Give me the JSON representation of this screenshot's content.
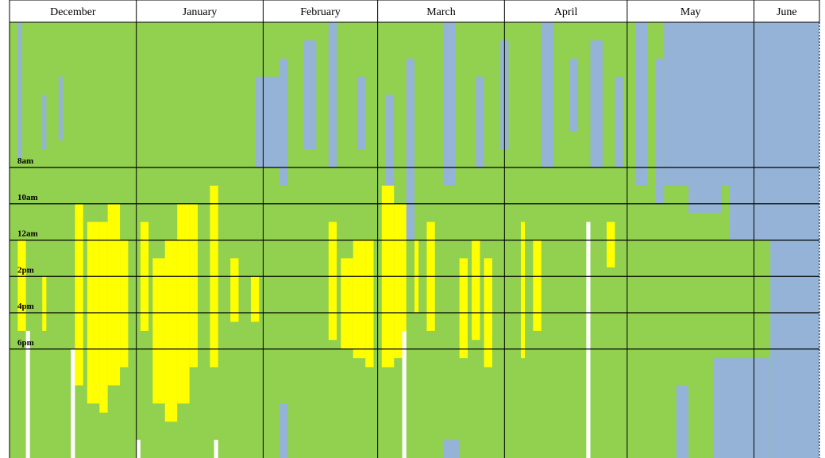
{
  "chart_data": {
    "type": "heatmap",
    "months": [
      "December",
      "January",
      "February",
      "March",
      "April",
      "May",
      "June"
    ],
    "month_starts": [
      0,
      31,
      62,
      90,
      121,
      151,
      182
    ],
    "xlim": [
      0,
      198
    ],
    "ylim": [
      0,
      24
    ],
    "yticks": [
      {
        "value": 8,
        "label": "8am"
      },
      {
        "value": 10,
        "label": "10am"
      },
      {
        "value": 12,
        "label": "12am"
      },
      {
        "value": 14,
        "label": "2pm"
      },
      {
        "value": 16,
        "label": "4pm"
      },
      {
        "value": 18,
        "label": "6pm"
      }
    ],
    "background": "#92d050",
    "palette": [
      "#95b3d7",
      "#ffff00",
      "#ffffff"
    ],
    "stripes": [
      [
        2,
        1,
        0,
        7.5,
        0
      ],
      [
        8,
        1,
        4,
        7,
        0
      ],
      [
        12,
        1,
        3,
        6.5,
        0
      ],
      [
        60,
        7,
        3,
        8,
        0
      ],
      [
        66,
        2,
        2,
        9,
        0
      ],
      [
        72,
        3,
        1,
        7,
        0
      ],
      [
        78,
        2,
        0,
        8,
        0
      ],
      [
        85,
        2,
        3,
        7,
        0
      ],
      [
        92,
        2,
        4,
        9,
        0
      ],
      [
        97,
        2,
        2,
        12,
        0
      ],
      [
        106,
        3,
        0,
        9,
        0
      ],
      [
        114,
        2,
        3,
        8,
        0
      ],
      [
        120,
        2,
        1,
        7,
        0
      ],
      [
        130,
        3,
        0,
        8,
        0
      ],
      [
        137,
        2,
        2,
        6,
        0
      ],
      [
        142,
        3,
        1,
        8,
        0
      ],
      [
        148,
        2,
        3,
        8,
        0
      ],
      [
        153,
        3,
        0,
        9,
        0
      ],
      [
        158,
        2,
        2,
        10,
        0
      ],
      [
        160,
        38,
        0,
        9,
        0
      ],
      [
        166,
        8,
        9,
        10.5,
        0
      ],
      [
        176,
        22,
        9,
        12,
        0
      ],
      [
        186,
        12,
        12,
        24,
        0
      ],
      [
        172,
        14,
        18.5,
        24,
        0
      ],
      [
        163,
        3,
        20,
        24,
        0
      ],
      [
        66,
        2,
        21,
        24,
        0
      ],
      [
        106,
        4,
        23,
        24,
        0
      ],
      [
        16,
        2,
        10,
        20,
        1
      ],
      [
        19,
        3,
        11,
        21,
        1
      ],
      [
        22,
        2,
        11,
        21.5,
        1
      ],
      [
        24,
        3,
        10,
        20,
        1
      ],
      [
        27,
        2,
        12,
        19,
        1
      ],
      [
        2,
        2,
        12,
        17,
        1
      ],
      [
        8,
        1,
        14,
        17,
        1
      ],
      [
        32,
        2,
        11,
        17,
        1
      ],
      [
        35,
        3,
        13,
        21,
        1
      ],
      [
        38,
        3,
        12,
        22,
        1
      ],
      [
        41,
        3,
        10,
        21,
        1
      ],
      [
        44,
        2,
        10,
        19,
        1
      ],
      [
        49,
        2,
        9,
        19,
        1
      ],
      [
        54,
        2,
        13,
        16.5,
        1
      ],
      [
        59,
        2,
        14,
        16.5,
        1
      ],
      [
        78,
        2,
        11,
        17.5,
        1
      ],
      [
        81,
        3,
        13,
        18,
        1
      ],
      [
        84,
        3,
        12,
        18.5,
        1
      ],
      [
        87,
        2,
        12,
        19,
        1
      ],
      [
        91,
        3,
        9,
        19,
        1
      ],
      [
        94,
        3,
        10,
        18.5,
        1
      ],
      [
        99,
        1,
        12,
        16,
        1
      ],
      [
        102,
        2,
        11,
        17,
        1
      ],
      [
        110,
        2,
        13,
        18.5,
        1
      ],
      [
        113,
        2,
        12,
        17.5,
        1
      ],
      [
        116,
        2,
        13,
        19,
        1
      ],
      [
        125,
        1,
        11,
        18.5,
        1
      ],
      [
        128,
        2,
        12,
        17,
        1
      ],
      [
        146,
        2,
        11,
        13.5,
        1
      ],
      [
        4,
        1,
        17,
        24,
        2
      ],
      [
        15,
        1,
        18,
        24,
        2
      ],
      [
        96,
        1,
        17,
        24,
        2
      ],
      [
        141,
        1,
        11,
        24,
        2
      ],
      [
        50,
        1,
        23,
        24,
        2
      ],
      [
        31,
        1,
        23,
        24,
        2
      ]
    ]
  }
}
